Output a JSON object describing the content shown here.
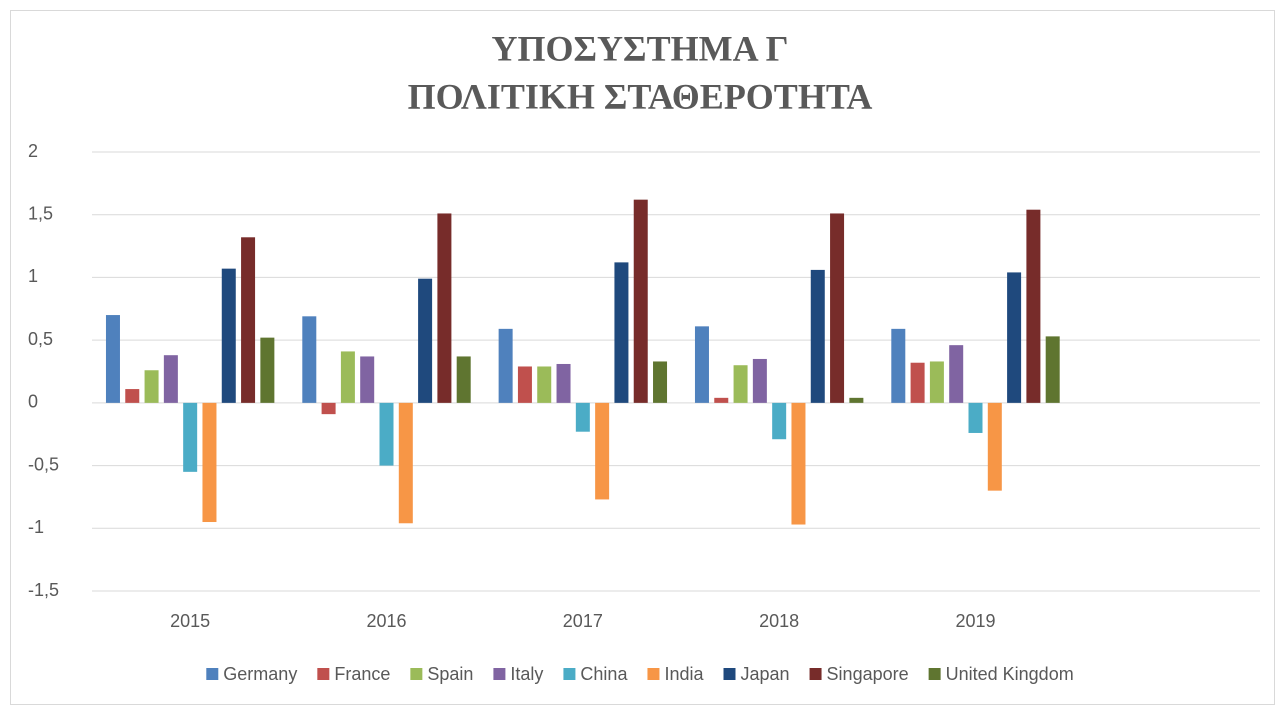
{
  "chart_data": {
    "type": "bar",
    "title": [
      "ΥΠΟΣΥΣΤΗΜΑ Γ",
      "ΠΟΛΙΤΙΚΗ ΣΤΑΘΕΡΟΤΗΤΑ"
    ],
    "categories": [
      "2015",
      "2016",
      "2017",
      "2018",
      "2019",
      null
    ],
    "series": [
      {
        "name": "Germany",
        "color": "#4f81bd",
        "values": [
          0.7,
          0.69,
          0.59,
          0.61,
          0.59,
          null
        ]
      },
      {
        "name": "France",
        "color": "#c0504d",
        "values": [
          0.11,
          -0.09,
          0.29,
          0.04,
          0.32,
          null
        ]
      },
      {
        "name": "Spain",
        "color": "#9bbb59",
        "values": [
          0.26,
          0.41,
          0.29,
          0.3,
          0.33,
          null
        ]
      },
      {
        "name": "Italy",
        "color": "#8064a2",
        "values": [
          0.38,
          0.37,
          0.31,
          0.35,
          0.46,
          null
        ]
      },
      {
        "name": "China",
        "color": "#4bacc6",
        "values": [
          -0.55,
          -0.5,
          -0.23,
          -0.29,
          -0.24,
          null
        ]
      },
      {
        "name": "India",
        "color": "#f79646",
        "values": [
          -0.95,
          -0.96,
          -0.77,
          -0.97,
          -0.7,
          null
        ]
      },
      {
        "name": "Japan",
        "color": "#1f497d",
        "values": [
          1.07,
          0.99,
          1.12,
          1.06,
          1.04,
          null
        ]
      },
      {
        "name": "Singapore",
        "color": "#772c2a",
        "values": [
          1.32,
          1.51,
          1.62,
          1.51,
          1.54,
          null
        ]
      },
      {
        "name": "United Kingdom",
        "color": "#5f7530",
        "values": [
          0.52,
          0.37,
          0.33,
          0.04,
          0.53,
          null
        ]
      }
    ],
    "ylim": [
      -1.5,
      2
    ],
    "yticks": [
      {
        "value": -1.5,
        "label": "-1,5"
      },
      -1,
      {
        "value": -0.5,
        "label": "-0,5"
      },
      0,
      {
        "value": 0.5,
        "label": "0,5"
      },
      1,
      {
        "value": 1.5,
        "label": "1,5"
      },
      2
    ],
    "grid": true,
    "legend": "bottom"
  }
}
